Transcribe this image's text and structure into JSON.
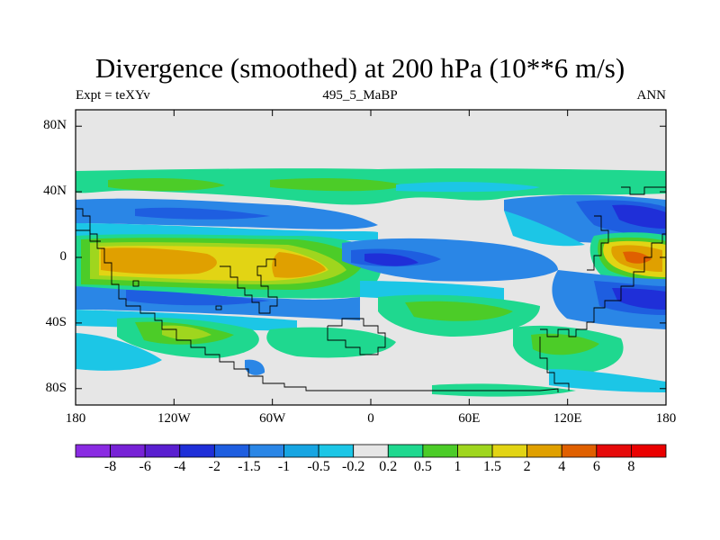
{
  "chart_data": {
    "type": "heatmap",
    "title": "Divergence (smoothed) at 200 hPa (10**6 m/s)",
    "subtitle_left": "Expt = teXYv",
    "subtitle_center": "495_5_MaBP",
    "subtitle_right": "ANN",
    "xlim": [
      -180,
      180
    ],
    "ylim": [
      -90,
      90
    ],
    "x_ticks": [
      {
        "value": -180,
        "label": "180"
      },
      {
        "value": -120,
        "label": "120W"
      },
      {
        "value": -60,
        "label": "60W"
      },
      {
        "value": 0,
        "label": "0"
      },
      {
        "value": 60,
        "label": "60E"
      },
      {
        "value": 120,
        "label": "120E"
      },
      {
        "value": 180,
        "label": "180"
      }
    ],
    "y_ticks": [
      {
        "value": 80,
        "label": "80N"
      },
      {
        "value": 40,
        "label": "40N"
      },
      {
        "value": 0,
        "label": "0"
      },
      {
        "value": -40,
        "label": "40S"
      },
      {
        "value": -80,
        "label": "80S"
      }
    ],
    "colorbar": {
      "levels": [
        "-8",
        "-6",
        "-4",
        "-2",
        "-1.5",
        "-1",
        "-0.5",
        "-0.2",
        "0.2",
        "0.5",
        "1",
        "1.5",
        "2",
        "4",
        "6",
        "8"
      ],
      "colors": [
        "#8a2be2",
        "#7722d6",
        "#5a1fd0",
        "#1f2fd8",
        "#1e5ee0",
        "#2a86e6",
        "#17a5e2",
        "#1cc6e6",
        "#e6e6e6",
        "#1fd88f",
        "#4ccc28",
        "#9fd61e",
        "#e2d414",
        "#e0a000",
        "#e06000",
        "#e60a0a",
        "#ea0000"
      ]
    },
    "field": [
      {
        "lat": 60,
        "lon": -180,
        "value": 0.3
      },
      {
        "lat": 0,
        "lon": -140,
        "value": 3.0
      },
      {
        "lat": 0,
        "lon": -45,
        "value": 3.0
      },
      {
        "lat": -5,
        "lon": 10,
        "value": -3.0
      },
      {
        "lat": 5,
        "lon": 165,
        "value": 5.0
      },
      {
        "lat": -25,
        "lon": 160,
        "value": -2.5
      },
      {
        "lat": 25,
        "lon": 150,
        "value": -2.5
      },
      {
        "lat": 30,
        "lon": -20,
        "value": 1.8
      },
      {
        "lat": -50,
        "lon": 100,
        "value": 1.0
      }
    ],
    "grid": false,
    "legend": "bottom"
  }
}
